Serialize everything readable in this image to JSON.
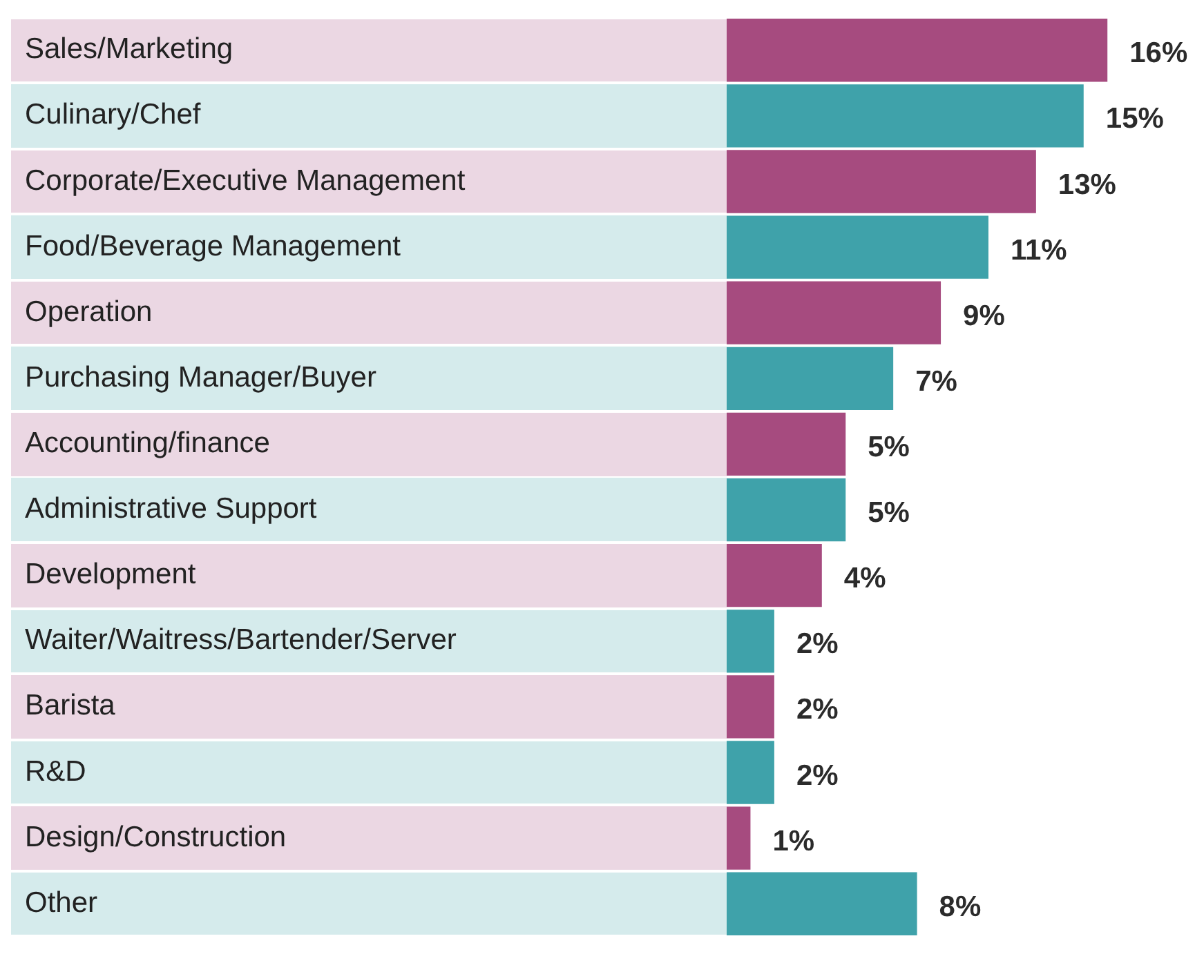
{
  "chart_data": {
    "type": "bar",
    "orientation": "horizontal",
    "categories": [
      "Sales/Marketing",
      "Culinary/Chef",
      "Corporate/Executive Management",
      "Food/Beverage Management",
      "Operation",
      "Purchasing Manager/Buyer",
      "Accounting/finance",
      "Administrative Support",
      "Development",
      "Waiter/Waitress/Bartender/Server",
      "Barista",
      "R&D",
      "Design/Construction",
      "Other"
    ],
    "values": [
      16,
      15,
      13,
      11,
      9,
      7,
      5,
      5,
      4,
      2,
      2,
      2,
      1,
      8
    ],
    "value_labels": [
      "16%",
      "15%",
      "13%",
      "11%",
      "9%",
      "7%",
      "5%",
      "5%",
      "4%",
      "2%",
      "2%",
      "2%",
      "1%",
      "8%"
    ],
    "colors": [
      "#a64b7f",
      "#3fa2aa",
      "#a64b7f",
      "#3fa2aa",
      "#a64b7f",
      "#3fa2aa",
      "#a64b7f",
      "#3fa2aa",
      "#a64b7f",
      "#3fa2aa",
      "#a64b7f",
      "#3fa2aa",
      "#a64b7f",
      "#3fa2aa"
    ],
    "grid": false,
    "legend": false
  }
}
